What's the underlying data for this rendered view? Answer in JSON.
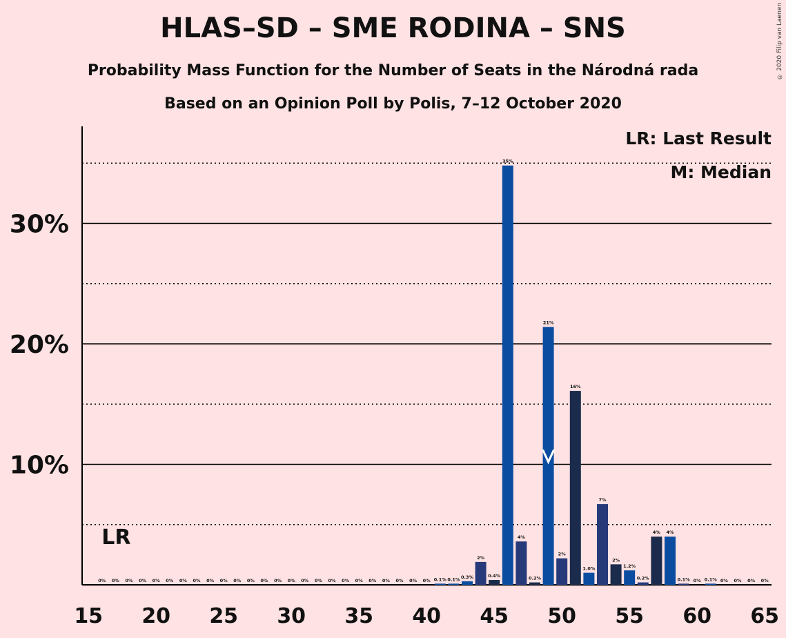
{
  "title": "HLAS–SD – SME RODINA – SNS",
  "subtitle1": "Probability Mass Function for the Number of Seats in the Národná rada",
  "subtitle2": "Based on an Opinion Poll by Polis, 7–12 October 2020",
  "copyright": "© 2020 Filip van Laenen",
  "legend": {
    "lr": "LR: Last Result",
    "median": "M: Median"
  },
  "markers": {
    "lr_label": "LR",
    "lr_seats": 17,
    "median_label": "M",
    "median_seats": 49
  },
  "colors": {
    "background": "#FFE2E3",
    "party_blue": "#0A4DA0",
    "coalition_navy": "#263A7A",
    "dark_navy": "#1A2B4B"
  },
  "chart_data": {
    "type": "bar",
    "title": "HLAS–SD – SME RODINA – SNS",
    "xlabel": "",
    "ylabel": "",
    "ylim": [
      0,
      38
    ],
    "xlim": [
      15,
      65
    ],
    "x_ticks": [
      "15",
      "20",
      "25",
      "30",
      "35",
      "40",
      "45",
      "50",
      "55",
      "60",
      "65"
    ],
    "y_ticks": [
      {
        "value": 10,
        "label": "10%"
      },
      {
        "value": 20,
        "label": "20%"
      },
      {
        "value": 30,
        "label": "30%"
      }
    ],
    "y_dotted": [
      5,
      15,
      25,
      35
    ],
    "bars": [
      {
        "seats": 16,
        "value": 0,
        "label": "0%",
        "color": "#0A4DA0"
      },
      {
        "seats": 17,
        "value": 0,
        "label": "0%",
        "color": "#0A4DA0"
      },
      {
        "seats": 18,
        "value": 0,
        "label": "0%",
        "color": "#0A4DA0"
      },
      {
        "seats": 19,
        "value": 0,
        "label": "0%",
        "color": "#0A4DA0"
      },
      {
        "seats": 20,
        "value": 0,
        "label": "0%",
        "color": "#0A4DA0"
      },
      {
        "seats": 21,
        "value": 0,
        "label": "0%",
        "color": "#0A4DA0"
      },
      {
        "seats": 22,
        "value": 0,
        "label": "0%",
        "color": "#0A4DA0"
      },
      {
        "seats": 23,
        "value": 0,
        "label": "0%",
        "color": "#0A4DA0"
      },
      {
        "seats": 24,
        "value": 0,
        "label": "0%",
        "color": "#0A4DA0"
      },
      {
        "seats": 25,
        "value": 0,
        "label": "0%",
        "color": "#0A4DA0"
      },
      {
        "seats": 26,
        "value": 0,
        "label": "0%",
        "color": "#0A4DA0"
      },
      {
        "seats": 27,
        "value": 0,
        "label": "0%",
        "color": "#0A4DA0"
      },
      {
        "seats": 28,
        "value": 0,
        "label": "0%",
        "color": "#0A4DA0"
      },
      {
        "seats": 29,
        "value": 0,
        "label": "0%",
        "color": "#0A4DA0"
      },
      {
        "seats": 30,
        "value": 0,
        "label": "0%",
        "color": "#0A4DA0"
      },
      {
        "seats": 31,
        "value": 0,
        "label": "0%",
        "color": "#0A4DA0"
      },
      {
        "seats": 32,
        "value": 0,
        "label": "0%",
        "color": "#0A4DA0"
      },
      {
        "seats": 33,
        "value": 0,
        "label": "0%",
        "color": "#0A4DA0"
      },
      {
        "seats": 34,
        "value": 0,
        "label": "0%",
        "color": "#0A4DA0"
      },
      {
        "seats": 35,
        "value": 0,
        "label": "0%",
        "color": "#0A4DA0"
      },
      {
        "seats": 36,
        "value": 0,
        "label": "0%",
        "color": "#0A4DA0"
      },
      {
        "seats": 37,
        "value": 0,
        "label": "0%",
        "color": "#0A4DA0"
      },
      {
        "seats": 38,
        "value": 0,
        "label": "0%",
        "color": "#0A4DA0"
      },
      {
        "seats": 39,
        "value": 0,
        "label": "0%",
        "color": "#0A4DA0"
      },
      {
        "seats": 40,
        "value": 0,
        "label": "0%",
        "color": "#0A4DA0"
      },
      {
        "seats": 41,
        "value": 0.1,
        "label": "0.1%",
        "color": "#0A4DA0"
      },
      {
        "seats": 42,
        "value": 0.1,
        "label": "0.1%",
        "color": "#0A4DA0"
      },
      {
        "seats": 43,
        "value": 0.3,
        "label": "0.3%",
        "color": "#0A4DA0"
      },
      {
        "seats": 44,
        "value": 1.9,
        "label": "2%",
        "color": "#263A7A"
      },
      {
        "seats": 45,
        "value": 0.4,
        "label": "0.4%",
        "color": "#1A2B4B"
      },
      {
        "seats": 46,
        "value": 34.8,
        "label": "35%",
        "color": "#0A4DA0"
      },
      {
        "seats": 47,
        "value": 3.6,
        "label": "4%",
        "color": "#263A7A"
      },
      {
        "seats": 48,
        "value": 0.2,
        "label": "0.2%",
        "color": "#1A2B4B"
      },
      {
        "seats": 49,
        "value": 21.4,
        "label": "21%",
        "color": "#0A4DA0"
      },
      {
        "seats": 50,
        "value": 2.2,
        "label": "2%",
        "color": "#263A7A"
      },
      {
        "seats": 51,
        "value": 16.1,
        "label": "16%",
        "color": "#1A2B4B"
      },
      {
        "seats": 52,
        "value": 1.0,
        "label": "1.0%",
        "color": "#0A4DA0"
      },
      {
        "seats": 53,
        "value": 6.7,
        "label": "7%",
        "color": "#263A7A"
      },
      {
        "seats": 54,
        "value": 1.7,
        "label": "2%",
        "color": "#1A2B4B"
      },
      {
        "seats": 55,
        "value": 1.2,
        "label": "1.2%",
        "color": "#0A4DA0"
      },
      {
        "seats": 56,
        "value": 0.2,
        "label": "0.2%",
        "color": "#263A7A"
      },
      {
        "seats": 57,
        "value": 4.0,
        "label": "4%",
        "color": "#1A2B4B"
      },
      {
        "seats": 58,
        "value": 4.0,
        "label": "4%",
        "color": "#0A4DA0"
      },
      {
        "seats": 59,
        "value": 0.1,
        "label": "0.1%",
        "color": "#263A7A"
      },
      {
        "seats": 60,
        "value": 0,
        "label": "0%",
        "color": "#1A2B4B"
      },
      {
        "seats": 61,
        "value": 0.1,
        "label": "0.1%",
        "color": "#0A4DA0"
      },
      {
        "seats": 62,
        "value": 0,
        "label": "0%",
        "color": "#263A7A"
      },
      {
        "seats": 63,
        "value": 0,
        "label": "0%",
        "color": "#1A2B4B"
      },
      {
        "seats": 64,
        "value": 0,
        "label": "0%",
        "color": "#0A4DA0"
      },
      {
        "seats": 65,
        "value": 0,
        "label": "0%",
        "color": "#263A7A"
      }
    ]
  }
}
